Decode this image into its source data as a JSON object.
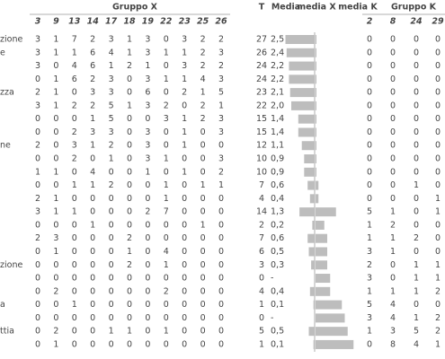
{
  "table": {
    "group_x": {
      "title": "Gruppo X",
      "columns": [
        3,
        9,
        13,
        14,
        17,
        18,
        19,
        22,
        23,
        25,
        26
      ]
    },
    "headers": {
      "t": "T",
      "media": "Media",
      "media_x": "media X",
      "media_k": "media K"
    },
    "group_k": {
      "title": "Gruppo K",
      "columns": [
        2,
        8,
        24,
        29
      ]
    },
    "rows": [
      {
        "label": "zione",
        "x": [
          3,
          1,
          7,
          2,
          3,
          1,
          3,
          0,
          3,
          2,
          2
        ],
        "t": 27,
        "media": "2,5",
        "media_x": 2.5,
        "k": [
          0,
          0,
          0,
          0
        ],
        "media_k": 0
      },
      {
        "label": "e",
        "x": [
          3,
          1,
          1,
          6,
          4,
          1,
          3,
          1,
          1,
          2,
          3
        ],
        "t": 26,
        "media": "2,4",
        "media_x": 2.4,
        "k": [
          0,
          0,
          0,
          0
        ],
        "media_k": 0
      },
      {
        "x": [
          3,
          0,
          4,
          6,
          1,
          2,
          1,
          0,
          3,
          2,
          2
        ],
        "t": 24,
        "media": "2,2",
        "media_x": 2.2,
        "k": [
          0,
          0,
          0,
          0
        ],
        "media_k": 0
      },
      {
        "x": [
          0,
          1,
          6,
          2,
          3,
          0,
          3,
          1,
          1,
          4,
          3
        ],
        "t": 24,
        "media": "2,2",
        "media_x": 2.2,
        "k": [
          0,
          0,
          0,
          0
        ],
        "media_k": 0
      },
      {
        "label": "zza",
        "x": [
          2,
          1,
          0,
          3,
          3,
          0,
          6,
          0,
          2,
          1,
          5
        ],
        "t": 23,
        "media": "2,1",
        "media_x": 2.1,
        "k": [
          0,
          0,
          0,
          0
        ],
        "media_k": 0
      },
      {
        "x": [
          3,
          1,
          2,
          2,
          5,
          1,
          3,
          2,
          0,
          2,
          1
        ],
        "t": 22,
        "media": "2,0",
        "media_x": 2.0,
        "k": [
          0,
          0,
          0,
          0
        ],
        "media_k": 0
      },
      {
        "x": [
          0,
          0,
          0,
          1,
          5,
          0,
          0,
          3,
          1,
          2,
          3
        ],
        "t": 15,
        "media": "1,4",
        "media_x": 1.4,
        "k": [
          0,
          0,
          0,
          0
        ],
        "media_k": 0
      },
      {
        "x": [
          0,
          0,
          2,
          3,
          3,
          0,
          3,
          0,
          1,
          0,
          3
        ],
        "t": 15,
        "media": "1,4",
        "media_x": 1.4,
        "k": [
          0,
          0,
          0,
          0
        ],
        "media_k": 0
      },
      {
        "label": "ne",
        "x": [
          2,
          0,
          3,
          1,
          2,
          0,
          3,
          0,
          1,
          0,
          0
        ],
        "t": 12,
        "media": "1,1",
        "media_x": 1.1,
        "k": [
          0,
          0,
          0,
          0
        ],
        "media_k": 0
      },
      {
        "x": [
          0,
          0,
          2,
          0,
          1,
          0,
          3,
          1,
          0,
          0,
          3
        ],
        "t": 10,
        "media": "0,9",
        "media_x": 0.9,
        "k": [
          0,
          0,
          0,
          0
        ],
        "media_k": 0
      },
      {
        "x": [
          1,
          1,
          0,
          4,
          0,
          0,
          1,
          0,
          1,
          0,
          2
        ],
        "t": 10,
        "media": "0,9",
        "media_x": 0.9,
        "k": [
          0,
          0,
          0,
          0
        ],
        "media_k": 0
      },
      {
        "x": [
          0,
          0,
          1,
          1,
          2,
          0,
          0,
          1,
          0,
          1,
          1
        ],
        "t": 7,
        "media": "0,6",
        "media_x": 0.6,
        "k": [
          0,
          0,
          1,
          0
        ],
        "media_k": 0.25
      },
      {
        "x": [
          2,
          1,
          0,
          0,
          0,
          0,
          0,
          1,
          0,
          0,
          0
        ],
        "t": 4,
        "media": "0,4",
        "media_x": 0.4,
        "k": [
          0,
          0,
          0,
          1
        ],
        "media_k": 0.25
      },
      {
        "x": [
          3,
          1,
          1,
          0,
          0,
          0,
          2,
          7,
          0,
          0,
          0
        ],
        "t": 14,
        "media": "1,3",
        "media_x": 1.3,
        "k": [
          5,
          1,
          0,
          1
        ],
        "media_k": 1.75
      },
      {
        "x": [
          0,
          0,
          0,
          1,
          0,
          0,
          0,
          0,
          0,
          1,
          0
        ],
        "t": 2,
        "media": "0,2",
        "media_x": 0.2,
        "k": [
          1,
          2,
          0,
          0
        ],
        "media_k": 0.75
      },
      {
        "x": [
          2,
          3,
          0,
          0,
          0,
          2,
          0,
          0,
          0,
          0,
          0
        ],
        "t": 7,
        "media": "0,6",
        "media_x": 0.6,
        "k": [
          1,
          1,
          2,
          0
        ],
        "media_k": 1.0
      },
      {
        "x": [
          0,
          1,
          0,
          0,
          0,
          1,
          0,
          4,
          0,
          0,
          0
        ],
        "t": 6,
        "media": "0,5",
        "media_x": 0.5,
        "k": [
          3,
          1,
          0,
          0
        ],
        "media_k": 1.0
      },
      {
        "label": "zione",
        "x": [
          0,
          0,
          0,
          0,
          0,
          2,
          0,
          1,
          0,
          0,
          0
        ],
        "t": 3,
        "media": "0,3",
        "media_x": 0.3,
        "k": [
          2,
          0,
          1,
          1
        ],
        "media_k": 1.0
      },
      {
        "x": [
          0,
          0,
          0,
          0,
          0,
          0,
          0,
          0,
          0,
          0,
          0
        ],
        "t": 0,
        "media": "-",
        "media_x": null,
        "k": [
          3,
          0,
          1,
          1
        ],
        "media_k": 1.25
      },
      {
        "x": [
          0,
          2,
          0,
          0,
          0,
          0,
          0,
          2,
          0,
          0,
          0
        ],
        "t": 4,
        "media": "0,4",
        "media_x": 0.4,
        "k": [
          1,
          1,
          1,
          2
        ],
        "media_k": 1.25
      },
      {
        "label": "a",
        "x": [
          0,
          0,
          1,
          0,
          0,
          0,
          0,
          0,
          0,
          0,
          0
        ],
        "t": 1,
        "media": "0,1",
        "media_x": 0.1,
        "k": [
          5,
          4,
          0,
          0
        ],
        "media_k": 2.25
      },
      {
        "x": [
          0,
          0,
          0,
          0,
          0,
          0,
          0,
          0,
          0,
          0,
          0
        ],
        "t": 0,
        "media": "-",
        "media_x": null,
        "k": [
          3,
          4,
          1,
          2
        ],
        "media_k": 2.5
      },
      {
        "label": "ttia",
        "x": [
          0,
          2,
          0,
          0,
          1,
          1,
          0,
          1,
          0,
          0,
          0
        ],
        "t": 5,
        "media": "0,5",
        "media_x": 0.5,
        "k": [
          1,
          3,
          5,
          2
        ],
        "media_k": 2.75
      },
      {
        "x": [
          0,
          1,
          0,
          0,
          0,
          0,
          0,
          0,
          0,
          0,
          0
        ],
        "t": 1,
        "media": "0,1",
        "media_x": 0.1,
        "k": [
          0,
          8,
          4,
          1
        ],
        "media_k": 3.25
      }
    ]
  }
}
